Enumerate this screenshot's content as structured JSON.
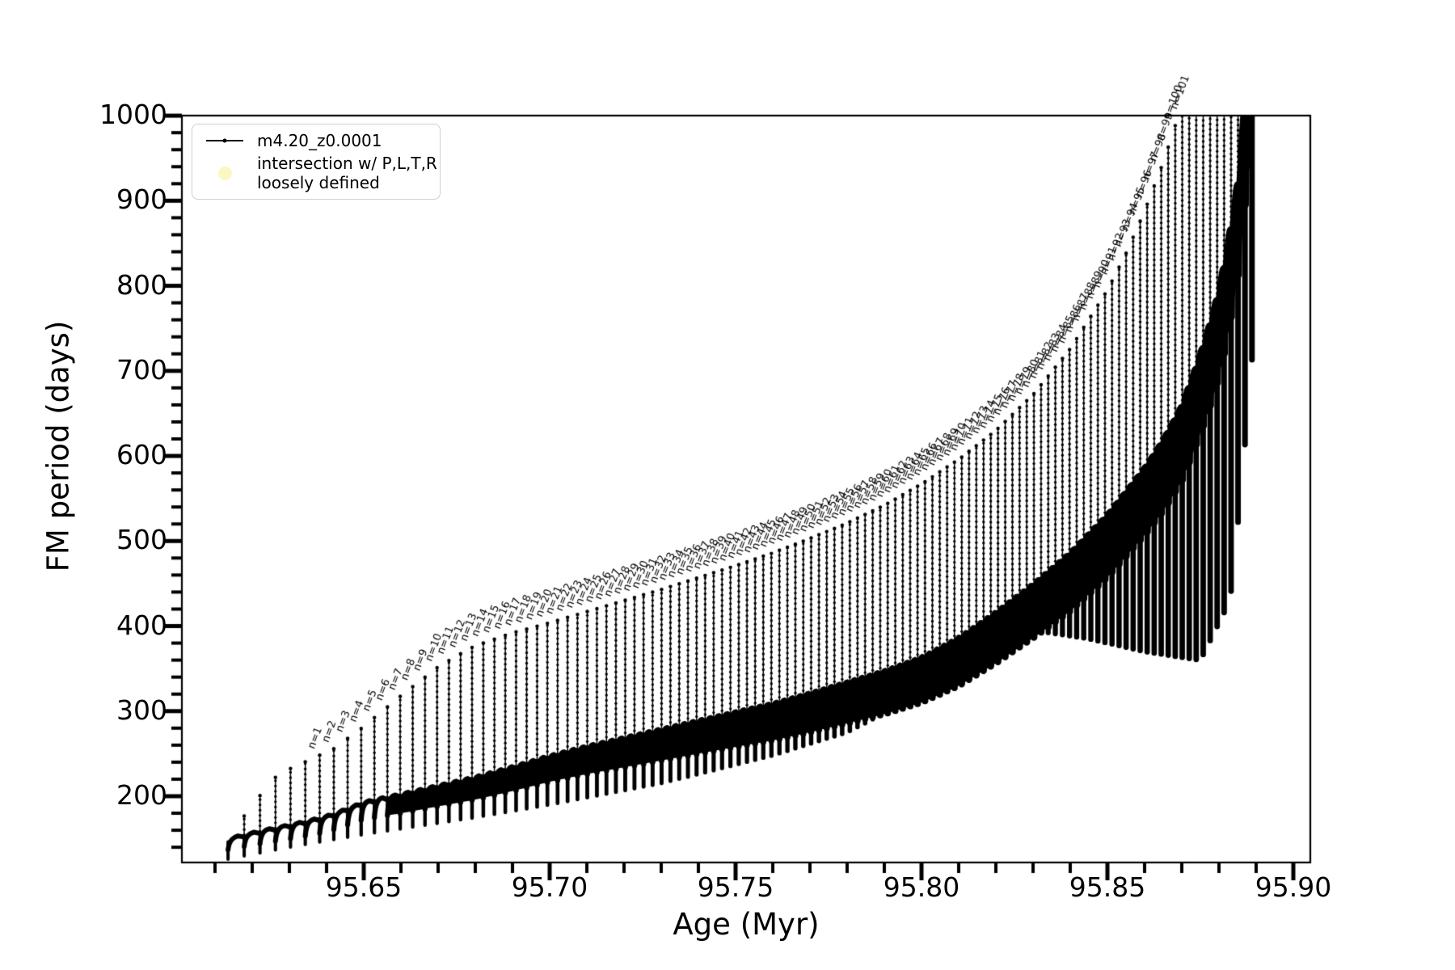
{
  "chart_data": {
    "type": "line",
    "title": "",
    "xlabel": "Age (Myr)",
    "ylabel": "FM period (days)",
    "xlim": [
      95.601,
      95.9046
    ],
    "ylim": [
      122,
      1000
    ],
    "grid": false,
    "legend_position": "upper left",
    "x_tick_values": [
      95.65,
      95.7,
      95.75,
      95.8,
      95.85,
      95.9
    ],
    "x_tick_labels": [
      "95.65",
      "95.70",
      "95.75",
      "95.80",
      "95.85",
      "95.90"
    ],
    "x_minor_step": 0.01,
    "y_tick_values": [
      200,
      300,
      400,
      500,
      600,
      700,
      800,
      900,
      1000
    ],
    "y_tick_labels": [
      "200",
      "300",
      "400",
      "500",
      "600",
      "700",
      "800",
      "900",
      "1000"
    ],
    "y_minor_step": 20,
    "series": [
      {
        "name": "m4.20_z0.0001",
        "color": "#000000",
        "marker": "point",
        "role": "FM-period track with thermal-pulse spikes"
      },
      {
        "name": "intersection w/ P,L,T,R loosely defined",
        "label_line1": "intersection w/ P,L,T,R",
        "label_line2": "loosely defined",
        "color": "#fbf7c5",
        "marker": "circle",
        "role": "intersection points (hidden under track)"
      }
    ],
    "annotation": {
      "format": "n=",
      "first_n": 1,
      "rotation_deg": -69,
      "max_period_for_label": 1022
    },
    "pulse_model": {
      "age_start": 95.6135,
      "count": 117,
      "gap_min": 0.00185,
      "gap_amp": 0.0025,
      "gap_tau": 24,
      "unlabeled_leading_pulses": 6
    },
    "envelope_top_points": [
      [
        95.6135,
        150
      ],
      [
        95.62,
        190
      ],
      [
        95.627,
        226
      ],
      [
        95.635,
        242
      ],
      [
        95.642,
        256
      ],
      [
        95.65,
        282
      ],
      [
        95.66,
        318
      ],
      [
        95.67,
        352
      ],
      [
        95.675,
        365
      ],
      [
        95.68,
        377
      ],
      [
        95.69,
        392
      ],
      [
        95.7,
        404
      ],
      [
        95.71,
        417
      ],
      [
        95.72,
        430
      ],
      [
        95.73,
        443
      ],
      [
        95.74,
        457
      ],
      [
        95.75,
        471
      ],
      [
        95.76,
        486
      ],
      [
        95.77,
        503
      ],
      [
        95.78,
        521
      ],
      [
        95.79,
        542
      ],
      [
        95.8,
        567
      ],
      [
        95.81,
        596
      ],
      [
        95.82,
        630
      ],
      [
        95.83,
        672
      ],
      [
        95.84,
        726
      ],
      [
        95.85,
        795
      ],
      [
        95.855,
        838
      ],
      [
        95.86,
        888
      ],
      [
        95.865,
        945
      ],
      [
        95.87,
        1012
      ],
      [
        95.875,
        1130
      ],
      [
        95.88,
        1300
      ],
      [
        95.885,
        1550
      ],
      [
        95.889,
        1800
      ]
    ],
    "core_top_points": [
      [
        95.6135,
        150
      ],
      [
        95.62,
        157
      ],
      [
        95.63,
        166
      ],
      [
        95.64,
        176
      ],
      [
        95.65,
        193
      ],
      [
        95.66,
        202
      ],
      [
        95.67,
        212
      ],
      [
        95.68,
        222
      ],
      [
        95.69,
        234
      ],
      [
        95.7,
        247
      ],
      [
        95.71,
        258
      ],
      [
        95.72,
        268
      ],
      [
        95.73,
        278
      ],
      [
        95.74,
        288
      ],
      [
        95.75,
        298
      ],
      [
        95.76,
        308
      ],
      [
        95.77,
        320
      ],
      [
        95.78,
        333
      ],
      [
        95.79,
        346
      ],
      [
        95.8,
        362
      ],
      [
        95.81,
        385
      ],
      [
        95.82,
        415
      ],
      [
        95.83,
        448
      ],
      [
        95.84,
        485
      ],
      [
        95.85,
        530
      ],
      [
        95.86,
        585
      ],
      [
        95.865,
        618
      ],
      [
        95.87,
        658
      ],
      [
        95.875,
        718
      ],
      [
        95.879,
        775
      ],
      [
        95.882,
        835
      ],
      [
        95.885,
        915
      ],
      [
        95.8868,
        1000
      ],
      [
        95.889,
        1090
      ]
    ],
    "core_thickness_points": [
      [
        95.6135,
        13
      ],
      [
        95.65,
        20
      ],
      [
        95.7,
        30
      ],
      [
        95.75,
        40
      ],
      [
        95.8,
        52
      ],
      [
        95.83,
        62
      ],
      [
        95.86,
        78
      ],
      [
        95.875,
        92
      ],
      [
        95.885,
        108
      ],
      [
        95.889,
        118
      ]
    ],
    "spike_bottom_points": [
      [
        95.6135,
        126
      ],
      [
        95.63,
        140
      ],
      [
        95.65,
        155
      ],
      [
        95.68,
        175
      ],
      [
        95.7,
        190
      ],
      [
        95.73,
        215
      ],
      [
        95.76,
        248
      ],
      [
        95.78,
        275
      ],
      [
        95.8,
        320
      ],
      [
        95.815,
        375
      ],
      [
        95.83,
        395
      ],
      [
        95.845,
        385
      ],
      [
        95.86,
        370
      ],
      [
        95.875,
        360
      ],
      [
        95.883,
        430
      ],
      [
        95.886,
        560
      ],
      [
        95.889,
        720
      ]
    ]
  },
  "legend": {
    "entry1_label": "m4.20_z0.0001",
    "entry2_line1": "intersection w/ P,L,T,R",
    "entry2_line2": "loosely defined",
    "entry2_color": "#fbf7c5"
  },
  "axes": {
    "xlabel": "Age (Myr)",
    "ylabel": "FM period (days)"
  }
}
